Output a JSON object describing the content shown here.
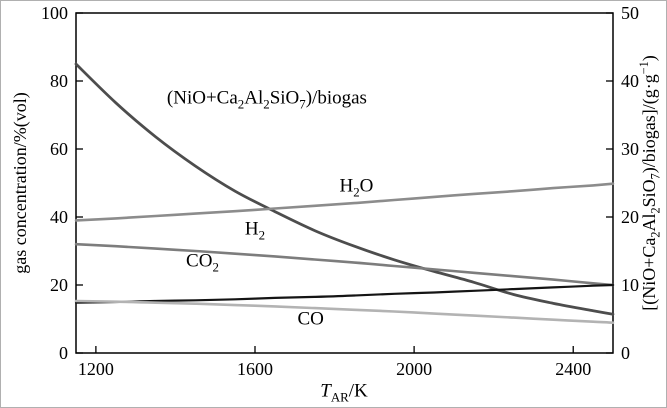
{
  "figure": {
    "background": "#ffffff",
    "frame_color": "#000000"
  },
  "chart_data": {
    "type": "line",
    "title": "",
    "grid": false,
    "legend": false,
    "xlabel_html": "<i>T</i><sub>AR</sub>/K",
    "xlabel_text": "T_AR/K",
    "ylabel_left_html": "gas concentration/%(vol)",
    "ylabel_left_text": "gas concentration/%(vol)",
    "ylabel_right_html": "[(NiO+Ca<sub>2</sub>Al<sub>2</sub>SiO<sub>7</sub>)/biogas]/(g·g<sup>−1</sup>)",
    "ylabel_right_text": "[(NiO+Ca2Al2SiO7)/biogas]/(g·g-1)",
    "x_axis": {
      "min": 1150,
      "max": 2500,
      "ticks": [
        1200,
        1600,
        2000,
        2400
      ]
    },
    "y_axis_left": {
      "min": 0,
      "max": 100,
      "ticks": [
        0,
        20,
        40,
        60,
        80,
        100
      ]
    },
    "y_axis_right": {
      "min": 0,
      "max": 50,
      "ticks": [
        0,
        10,
        20,
        30,
        40,
        50
      ]
    },
    "x": [
      1150,
      1250,
      1350,
      1450,
      1550,
      1650,
      1750,
      1850,
      1950,
      2050,
      2150,
      2250,
      2350,
      2450,
      2500
    ],
    "series": [
      {
        "name": "(NiO+Ca2Al2SiO7)/biogas mass ratio",
        "axis": "right",
        "unit": "g/g",
        "color": "#4d4d4d",
        "width": 2.8,
        "values": [
          42.5,
          36.8,
          31.8,
          27.5,
          23.8,
          20.8,
          18.0,
          15.7,
          13.7,
          12.0,
          10.4,
          8.6,
          7.3,
          6.2,
          5.7
        ]
      },
      {
        "name": "H2O",
        "axis": "left",
        "unit": "%(vol)",
        "color": "#8c8c8c",
        "width": 2.6,
        "values": [
          39.0,
          39.6,
          40.3,
          41.0,
          41.7,
          42.5,
          43.3,
          44.1,
          45.0,
          45.9,
          46.8,
          47.6,
          48.5,
          49.3,
          49.8
        ]
      },
      {
        "name": "H2",
        "axis": "left",
        "unit": "%(vol)",
        "color": "#7d7d7d",
        "width": 2.6,
        "values": [
          32.0,
          31.4,
          30.7,
          30.0,
          29.2,
          28.4,
          27.5,
          26.6,
          25.6,
          24.6,
          23.6,
          22.6,
          21.6,
          20.5,
          20.0
        ]
      },
      {
        "name": "CO2",
        "axis": "left",
        "unit": "%(vol)",
        "color": "#141414",
        "width": 2.2,
        "values": [
          14.8,
          15.0,
          15.3,
          15.5,
          15.8,
          16.2,
          16.5,
          16.9,
          17.4,
          17.8,
          18.3,
          18.8,
          19.3,
          19.8,
          20.0
        ]
      },
      {
        "name": "CO",
        "axis": "left",
        "unit": "%(vol)",
        "color": "#b3b3b3",
        "width": 2.6,
        "values": [
          15.3,
          15.1,
          14.8,
          14.5,
          14.1,
          13.7,
          13.2,
          12.7,
          12.2,
          11.6,
          11.0,
          10.4,
          9.8,
          9.2,
          8.9
        ]
      }
    ],
    "annotation": {
      "html": "(NiO+Ca<sub>2</sub>Al<sub>2</sub>SiO<sub>7</sub>)/biogas",
      "text": "(NiO+Ca2Al2SiO7)/biogas",
      "x": 1630,
      "y": 75
    },
    "curve_labels": [
      {
        "html": "H<sub>2</sub>O",
        "text": "H2O",
        "x": 1855,
        "y": 49
      },
      {
        "html": "H<sub>2</sub>",
        "text": "H2",
        "x": 1600,
        "y": 36.5
      },
      {
        "html": "CO<sub>2</sub>",
        "text": "CO2",
        "x": 1468,
        "y": 27
      },
      {
        "html": "CO",
        "text": "CO",
        "x": 1740,
        "y": 10
      }
    ]
  }
}
